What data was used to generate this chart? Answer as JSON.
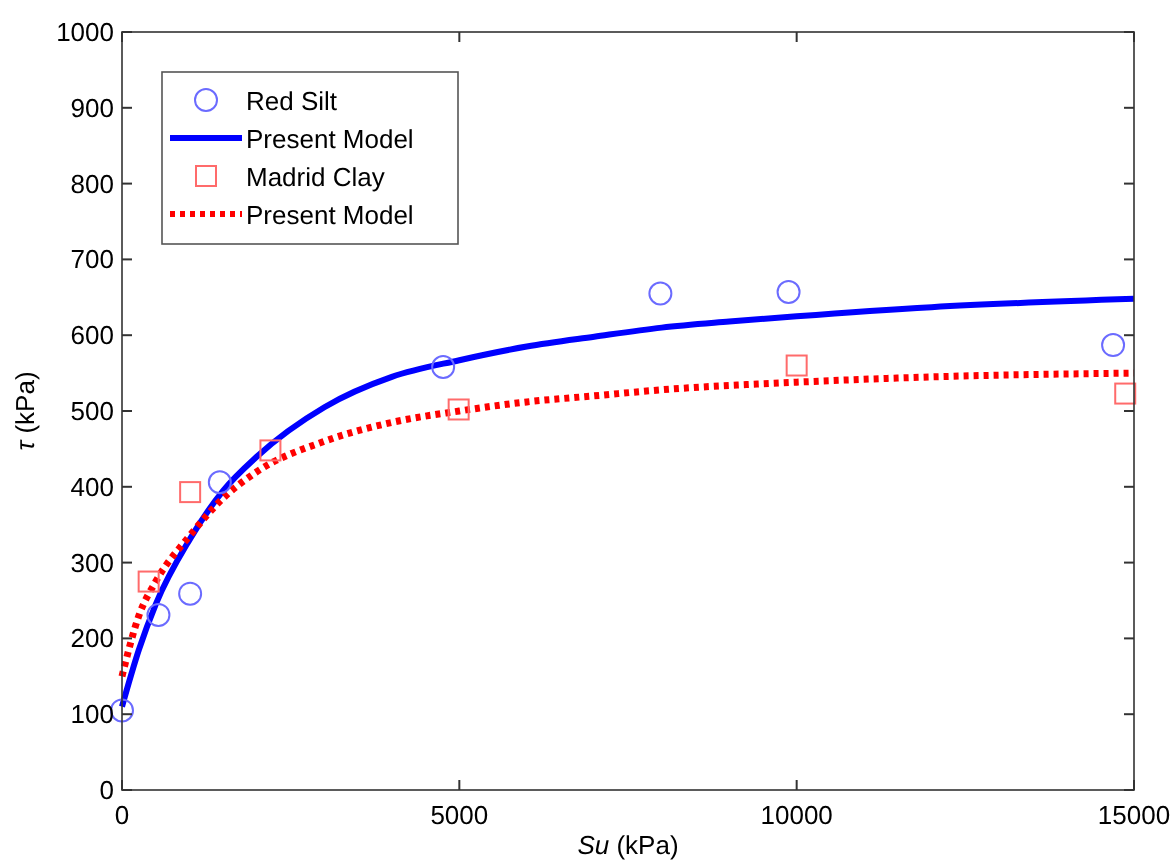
{
  "chart_data": {
    "type": "scatter",
    "xlabel": "Su (kPa)",
    "ylabel": "τ (kPa)",
    "xlim": [
      0,
      15000
    ],
    "ylim": [
      0,
      1000
    ],
    "xticks": [
      0,
      5000,
      10000,
      15000
    ],
    "yticks": [
      0,
      100,
      200,
      300,
      400,
      500,
      600,
      700,
      800,
      900,
      1000
    ],
    "grid": false,
    "legend": "top left",
    "series": [
      {
        "name": "Red Silt",
        "marker": "circle",
        "color": "#6b6bff",
        "x": [
          0,
          540,
          1010,
          1450,
          4760,
          7980,
          9880,
          14690
        ],
        "values": [
          105,
          231,
          259,
          406,
          558,
          655,
          657,
          587
        ]
      },
      {
        "name": "Present Model",
        "type": "line",
        "line_style": "solid",
        "color": "#0000ff",
        "x": [
          0,
          250,
          500,
          1000,
          1500,
          2000,
          3000,
          4000,
          5000,
          6000,
          7000,
          8000,
          9000,
          10000,
          12000,
          15000
        ],
        "values": [
          110,
          185,
          245,
          330,
          395,
          440,
          505,
          545,
          567,
          585,
          598,
          610,
          618,
          625,
          637,
          648
        ]
      },
      {
        "name": "Madrid Clay",
        "marker": "square",
        "color": "#ff6b6b",
        "x": [
          395,
          1010,
          2200,
          4990,
          10000,
          14870
        ],
        "values": [
          275,
          393,
          448,
          502,
          560,
          523
        ]
      },
      {
        "name": "Present Model",
        "type": "line",
        "line_style": "dotted",
        "color": "#ff0000",
        "x": [
          0,
          250,
          500,
          1000,
          1500,
          2000,
          3000,
          4000,
          5000,
          6000,
          7000,
          8000,
          10000,
          12000,
          15000
        ],
        "values": [
          150,
          230,
          275,
          335,
          385,
          420,
          460,
          485,
          500,
          512,
          520,
          528,
          538,
          545,
          550
        ]
      }
    ]
  }
}
